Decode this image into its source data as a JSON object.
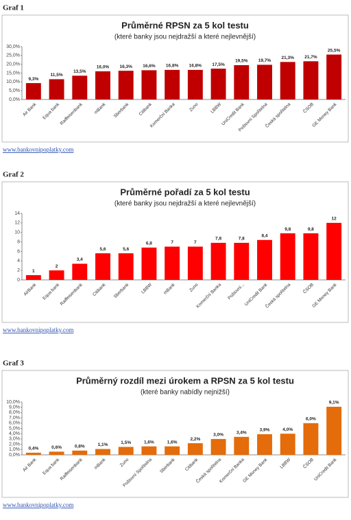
{
  "chart_data": [
    {
      "type": "bar",
      "label": "Graf 1",
      "title": "Průměrné RPSN za 5 kol testu",
      "subtitle": "(které banky jsou nejdražší a které nejlevnější)",
      "categories": [
        "Air Bank",
        "Equa bank",
        "Raiffeisenbank",
        "mBank",
        "Sberbank",
        "Citibank",
        "Komerční Banka",
        "Zuno",
        "LBBW",
        "UniCredit Bank",
        "Poštovní Spořitelna",
        "Česká spořitelna",
        "ČSOB",
        "GE Money Bank"
      ],
      "values": [
        9.3,
        11.5,
        13.5,
        16.0,
        16.3,
        16.6,
        16.8,
        16.8,
        17.5,
        19.5,
        19.7,
        21.3,
        21.7,
        25.5
      ],
      "value_labels": [
        "9,3%",
        "11,5%",
        "13,5%",
        "16,0%",
        "16,3%",
        "16,6%",
        "16,8%",
        "16,8%",
        "17,5%",
        "19,5%",
        "19,7%",
        "21,3%",
        "21,7%",
        "25,5%"
      ],
      "color": "#c00000",
      "ylim": [
        0,
        30
      ],
      "yticks": [
        {
          "value": 0,
          "label": "0,0%"
        },
        {
          "value": 5,
          "label": "5,0%"
        },
        {
          "value": 10,
          "label": "10,0%"
        },
        {
          "value": 15,
          "label": "15,0%"
        },
        {
          "value": 20,
          "label": "20,0%"
        },
        {
          "value": 25,
          "label": "25,0%"
        },
        {
          "value": 30,
          "label": "30,0%"
        }
      ],
      "source": "www.bankovnipoplatky.com"
    },
    {
      "type": "bar",
      "label": "Graf 2",
      "title": "Průměrné pořadí za 5 kol testu",
      "subtitle": "(které banky jsou nejdražší a které nejlevnější)",
      "categories": [
        "AirBank",
        "Equa bank",
        "Raiffeisenbank",
        "Citibank",
        "Sberbank",
        "LBBW",
        "mBank",
        "Zuno",
        "Komerční Banka",
        "Poštovní...",
        "UniCredit Bank",
        "Česká spořitelna",
        "ČSOB",
        "GE Money Bank"
      ],
      "values": [
        1,
        2,
        3.4,
        5.6,
        5.6,
        6.8,
        7,
        7,
        7.8,
        7.8,
        8.4,
        9.8,
        9.8,
        12
      ],
      "value_labels": [
        "1",
        "2",
        "3,4",
        "5,6",
        "5,6",
        "6,8",
        "7",
        "7",
        "7,8",
        "7,8",
        "8,4",
        "9,8",
        "9,8",
        "12"
      ],
      "color": "#ff0000",
      "ylim": [
        0,
        14
      ],
      "yticks": [
        0,
        2,
        4,
        6,
        8,
        10,
        12,
        14
      ],
      "source": "www.bankovnipoplatky.com"
    },
    {
      "type": "bar",
      "label": "Graf 3",
      "title": "Průměrný rozdíl mezi úrokem a RPSN za 5 kol testu",
      "subtitle": "(které banky nabídly nejnižší)",
      "categories": [
        "Air Bank",
        "Equa bank",
        "Raiffeisenbank",
        "mBank",
        "Zuno",
        "Poštovní Spořitelna",
        "Sberbank",
        "Citibank",
        "Česká spořitelna",
        "Komerční Banka",
        "GE Money Bank",
        "LBBW",
        "ČSOB",
        "UniCredit Bank"
      ],
      "values": [
        0.4,
        0.6,
        0.8,
        1.1,
        1.5,
        1.6,
        1.6,
        2.2,
        3.0,
        3.4,
        3.9,
        4.0,
        6.0,
        9.1
      ],
      "value_labels": [
        "0,4%",
        "0,6%",
        "0,8%",
        "1,1%",
        "1,5%",
        "1,6%",
        "1,6%",
        "2,2%",
        "3,0%",
        "3,4%",
        "3,9%",
        "4,0%",
        "6,0%",
        "9,1%"
      ],
      "color": "#e46c0a",
      "ylim": [
        0,
        10
      ],
      "yticks": [
        {
          "value": 0,
          "label": "0,0%"
        },
        {
          "value": 1,
          "label": "1,0%"
        },
        {
          "value": 2,
          "label": "2,0%"
        },
        {
          "value": 3,
          "label": "3,0%"
        },
        {
          "value": 4,
          "label": "4,0%"
        },
        {
          "value": 5,
          "label": "5,0%"
        },
        {
          "value": 6,
          "label": "6,0%"
        },
        {
          "value": 7,
          "label": "7,0%"
        },
        {
          "value": 8,
          "label": "8,0%"
        },
        {
          "value": 9,
          "label": "9,0%"
        },
        {
          "value": 10,
          "label": "10,0%"
        }
      ],
      "source": "www.bankovnipoplatky.com"
    }
  ]
}
